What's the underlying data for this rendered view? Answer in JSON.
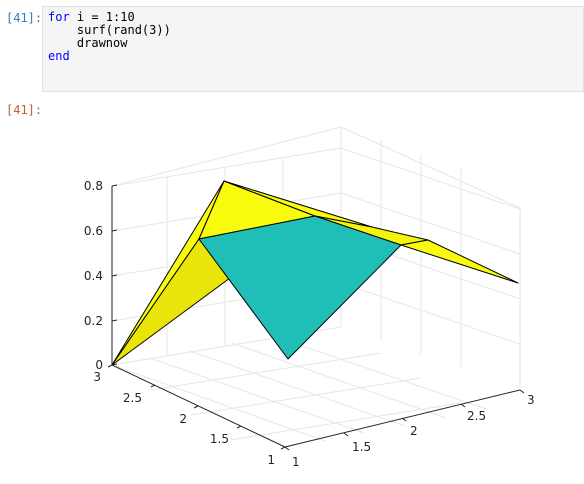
{
  "cell": {
    "input_prompt": "[41]:",
    "output_prompt": "[41]:",
    "code_lines": [
      {
        "parts": [
          {
            "text": "for",
            "kw": true
          },
          {
            "text": " i = 1:10",
            "kw": false
          }
        ]
      },
      {
        "parts": [
          {
            "text": "    surf(rand(3))",
            "kw": false
          }
        ]
      },
      {
        "parts": [
          {
            "text": "    drawnow",
            "kw": false
          }
        ]
      },
      {
        "parts": [
          {
            "text": "end",
            "kw": true
          }
        ]
      }
    ]
  },
  "colors": {
    "keyword": "#0000ff",
    "surface_yellow": "#f9fb0e",
    "surface_teal": "#1fbfb8",
    "grid": "#e6e6e6",
    "axis": "#262626"
  },
  "chart_data": {
    "type": "surface",
    "title": "",
    "xlabel": "",
    "ylabel": "",
    "zlabel": "",
    "x": [
      1,
      2,
      3
    ],
    "y": [
      1,
      2,
      3
    ],
    "xlim": [
      1,
      3
    ],
    "ylim": [
      1,
      3
    ],
    "zlim": [
      0,
      0.8
    ],
    "x_ticks": [
      "1",
      "1.5",
      "2",
      "2.5",
      "3"
    ],
    "y_ticks": [
      "1",
      "1.5",
      "2",
      "2.5",
      "3"
    ],
    "z_ticks": [
      "0",
      "0.2",
      "0.4",
      "0.6",
      "0.8"
    ],
    "grid": true
  }
}
